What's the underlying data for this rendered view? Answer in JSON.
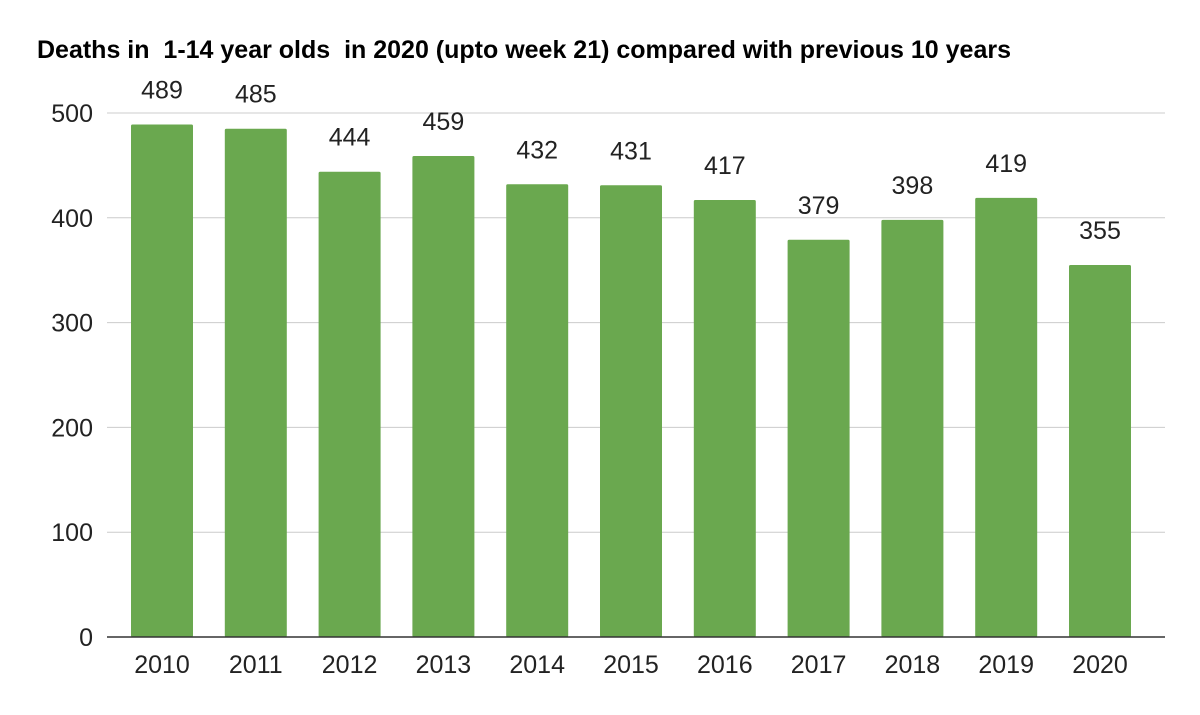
{
  "chart_data": {
    "type": "bar",
    "title": "Deaths in  1-14 year olds  in 2020 (upto week 21) compared with previous 10 years",
    "categories": [
      "2010",
      "2011",
      "2012",
      "2013",
      "2014",
      "2015",
      "2016",
      "2017",
      "2018",
      "2019",
      "2020"
    ],
    "values": [
      489,
      485,
      444,
      459,
      432,
      431,
      417,
      379,
      398,
      419,
      355
    ],
    "data_labels": [
      "489",
      "485",
      "444",
      "459",
      "432",
      "431",
      "417",
      "379",
      "398",
      "419",
      "355"
    ],
    "xlabel": "",
    "ylabel": "",
    "ylim": [
      0,
      500
    ],
    "yticks": [
      0,
      100,
      200,
      300,
      400,
      500
    ],
    "ytick_labels": [
      "0",
      "100",
      "200",
      "300",
      "400",
      "500"
    ],
    "grid": true,
    "legend": "none",
    "colors": {
      "bar": "#6aa84f",
      "grid": "#cccccc",
      "axis": "#333333",
      "text": "#222222"
    }
  }
}
